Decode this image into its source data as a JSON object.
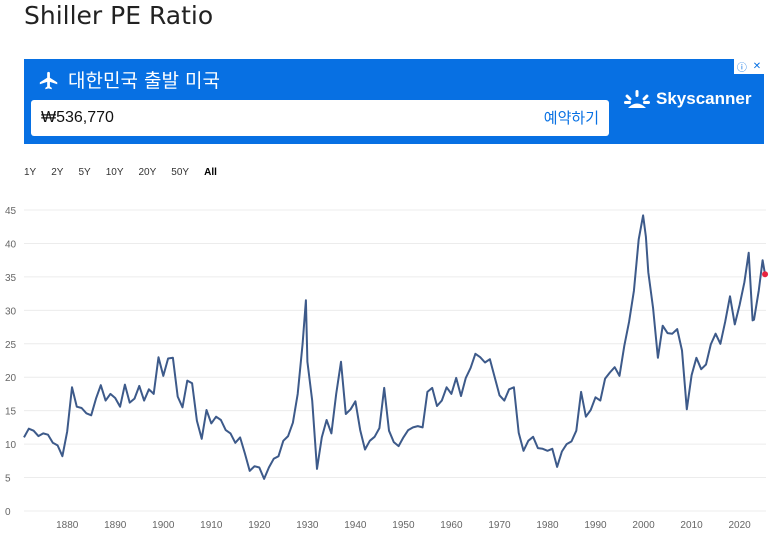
{
  "page": {
    "title": "Shiller PE Ratio"
  },
  "ad": {
    "route": "대한민국 출발 미국",
    "price": "₩536,770",
    "cta": "예약하기",
    "brand": "Skyscanner",
    "brand_color": "#0770e3"
  },
  "ranges": [
    {
      "label": "1Y",
      "active": false
    },
    {
      "label": "2Y",
      "active": false
    },
    {
      "label": "5Y",
      "active": false
    },
    {
      "label": "10Y",
      "active": false
    },
    {
      "label": "20Y",
      "active": false
    },
    {
      "label": "50Y",
      "active": false
    },
    {
      "label": "All",
      "active": true
    }
  ],
  "chart_data": {
    "type": "line",
    "title": "",
    "xlabel": "",
    "ylabel": "",
    "xlim": [
      1871,
      2025.5
    ],
    "ylim": [
      0,
      45
    ],
    "x_ticks": [
      1880,
      1890,
      1900,
      1910,
      1920,
      1930,
      1940,
      1950,
      1960,
      1970,
      1980,
      1990,
      2000,
      2010,
      2020
    ],
    "y_ticks": [
      0,
      5,
      10,
      15,
      20,
      25,
      30,
      35,
      40,
      45
    ],
    "grid": true,
    "line_color": "#3d5a8a",
    "marker_color": "#e8233f",
    "last_point": {
      "x": 2025.3,
      "y": 35.4
    },
    "series": [
      {
        "values": [
          [
            1871,
            11
          ],
          [
            1872,
            12.3
          ],
          [
            1873,
            12
          ],
          [
            1874,
            11.2
          ],
          [
            1875,
            11.6
          ],
          [
            1876,
            11.4
          ],
          [
            1877,
            10.2
          ],
          [
            1878,
            9.8
          ],
          [
            1879,
            8.2
          ],
          [
            1880,
            11.9
          ],
          [
            1881,
            18.5
          ],
          [
            1882,
            15.6
          ],
          [
            1883,
            15.4
          ],
          [
            1884,
            14.6
          ],
          [
            1885,
            14.3
          ],
          [
            1886,
            16.8
          ],
          [
            1887,
            18.8
          ],
          [
            1888,
            16.5
          ],
          [
            1889,
            17.5
          ],
          [
            1890,
            16.9
          ],
          [
            1891,
            15.6
          ],
          [
            1892,
            18.9
          ],
          [
            1893,
            16.2
          ],
          [
            1894,
            16.8
          ],
          [
            1895,
            18.7
          ],
          [
            1896,
            16.5
          ],
          [
            1897,
            18.2
          ],
          [
            1898,
            17.5
          ],
          [
            1899,
            23
          ],
          [
            1900,
            20.2
          ],
          [
            1901,
            22.8
          ],
          [
            1902,
            22.9
          ],
          [
            1903,
            17.1
          ],
          [
            1904,
            15.5
          ],
          [
            1905,
            19.5
          ],
          [
            1906,
            19.1
          ],
          [
            1907,
            13.5
          ],
          [
            1908,
            10.8
          ],
          [
            1909,
            15.1
          ],
          [
            1910,
            13.1
          ],
          [
            1911,
            14.1
          ],
          [
            1912,
            13.6
          ],
          [
            1913,
            12.1
          ],
          [
            1914,
            11.6
          ],
          [
            1915,
            10.2
          ],
          [
            1916,
            11
          ],
          [
            1917,
            8.6
          ],
          [
            1918,
            6
          ],
          [
            1919,
            6.7
          ],
          [
            1920,
            6.5
          ],
          [
            1921,
            4.8
          ],
          [
            1922,
            6.5
          ],
          [
            1923,
            7.8
          ],
          [
            1924,
            8.2
          ],
          [
            1925,
            10.5
          ],
          [
            1926,
            11.2
          ],
          [
            1927,
            13.2
          ],
          [
            1928,
            17.5
          ],
          [
            1929,
            25
          ],
          [
            1929.7,
            31.5
          ],
          [
            1930,
            22.3
          ],
          [
            1931,
            16.5
          ],
          [
            1932,
            6.3
          ],
          [
            1933,
            11
          ],
          [
            1934,
            13.6
          ],
          [
            1935,
            11.6
          ],
          [
            1936,
            17.5
          ],
          [
            1937,
            22.3
          ],
          [
            1938,
            14.5
          ],
          [
            1939,
            15.2
          ],
          [
            1940,
            16.4
          ],
          [
            1941,
            12.1
          ],
          [
            1942,
            9.2
          ],
          [
            1943,
            10.5
          ],
          [
            1944,
            11.1
          ],
          [
            1945,
            12.4
          ],
          [
            1946,
            18.4
          ],
          [
            1947,
            12
          ],
          [
            1948,
            10.3
          ],
          [
            1949,
            9.7
          ],
          [
            1950,
            11
          ],
          [
            1951,
            12.1
          ],
          [
            1952,
            12.5
          ],
          [
            1953,
            12.7
          ],
          [
            1954,
            12.5
          ],
          [
            1955,
            17.8
          ],
          [
            1956,
            18.4
          ],
          [
            1957,
            15.7
          ],
          [
            1958,
            16.5
          ],
          [
            1959,
            18.5
          ],
          [
            1960,
            17.5
          ],
          [
            1961,
            19.9
          ],
          [
            1962,
            17.2
          ],
          [
            1963,
            19.9
          ],
          [
            1964,
            21.4
          ],
          [
            1965,
            23.5
          ],
          [
            1966,
            23
          ],
          [
            1967,
            22.2
          ],
          [
            1968,
            22.7
          ],
          [
            1969,
            20
          ],
          [
            1970,
            17.3
          ],
          [
            1971,
            16.5
          ],
          [
            1972,
            18.2
          ],
          [
            1973,
            18.5
          ],
          [
            1974,
            11.7
          ],
          [
            1975,
            9
          ],
          [
            1976,
            10.5
          ],
          [
            1977,
            11.1
          ],
          [
            1978,
            9.4
          ],
          [
            1979,
            9.3
          ],
          [
            1980,
            9
          ],
          [
            1981,
            9.3
          ],
          [
            1982,
            6.6
          ],
          [
            1983,
            8.9
          ],
          [
            1984,
            10
          ],
          [
            1985,
            10.4
          ],
          [
            1986,
            12
          ],
          [
            1987,
            17.8
          ],
          [
            1988,
            14.1
          ],
          [
            1989,
            15.1
          ],
          [
            1990,
            17
          ],
          [
            1991,
            16.5
          ],
          [
            1992,
            19.8
          ],
          [
            1993,
            20.7
          ],
          [
            1994,
            21.5
          ],
          [
            1995,
            20.2
          ],
          [
            1996,
            24.7
          ],
          [
            1997,
            28.3
          ],
          [
            1998,
            32.9
          ],
          [
            1999,
            40.6
          ],
          [
            1999.9,
            44.2
          ],
          [
            2000.5,
            41
          ],
          [
            2001,
            35.7
          ],
          [
            2002,
            30.3
          ],
          [
            2003,
            22.9
          ],
          [
            2004,
            27.7
          ],
          [
            2005,
            26.6
          ],
          [
            2006,
            26.5
          ],
          [
            2007,
            27.2
          ],
          [
            2008,
            24
          ],
          [
            2009,
            15.2
          ],
          [
            2010,
            20.3
          ],
          [
            2011,
            22.9
          ],
          [
            2012,
            21.2
          ],
          [
            2013,
            21.9
          ],
          [
            2014,
            24.9
          ],
          [
            2015,
            26.5
          ],
          [
            2016,
            25
          ],
          [
            2017,
            28.3
          ],
          [
            2018,
            32.1
          ],
          [
            2019,
            27.9
          ],
          [
            2020,
            30.8
          ],
          [
            2021,
            34.2
          ],
          [
            2021.9,
            38.6
          ],
          [
            2022.7,
            28.5
          ],
          [
            2023,
            28.6
          ],
          [
            2024,
            33
          ],
          [
            2024.8,
            37.5
          ],
          [
            2025.3,
            35.4
          ]
        ]
      }
    ]
  }
}
